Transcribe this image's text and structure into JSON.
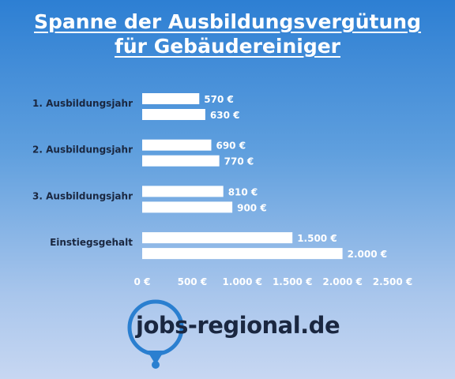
{
  "title_line1": "Spanne der Ausbildungsvergütung",
  "title_line2": "für Gebäudereiniger",
  "chart_data": {
    "type": "bar",
    "orientation": "horizontal",
    "categories": [
      "1. Ausbildungsjahr",
      "2. Ausbildungsjahr",
      "3. Ausbildungsjahr",
      "Einstiegsgehalt"
    ],
    "series": [
      {
        "values": [
          570,
          690,
          810,
          1500
        ],
        "labels": [
          "570 €",
          "690 €",
          "810 €",
          "1.500 €"
        ]
      },
      {
        "values": [
          630,
          770,
          900,
          2000
        ],
        "labels": [
          "630 €",
          "770 €",
          "900 €",
          "2.000 €"
        ]
      }
    ],
    "xlim": [
      0,
      2500
    ],
    "xticks": [
      0,
      500,
      1000,
      1500,
      2000,
      2500
    ],
    "xtick_labels": [
      "0 €",
      "500 €",
      "1.000 €",
      "1.500 €",
      "2.000 €",
      "2.500 €"
    ],
    "bar_color": "#ffffff",
    "grid": false,
    "legend": "none"
  },
  "logo": {
    "text_prefix": "jobs-",
    "text_suffix": "regional.de",
    "color": "#1a2740",
    "ring_color": "#2a7fd0"
  }
}
